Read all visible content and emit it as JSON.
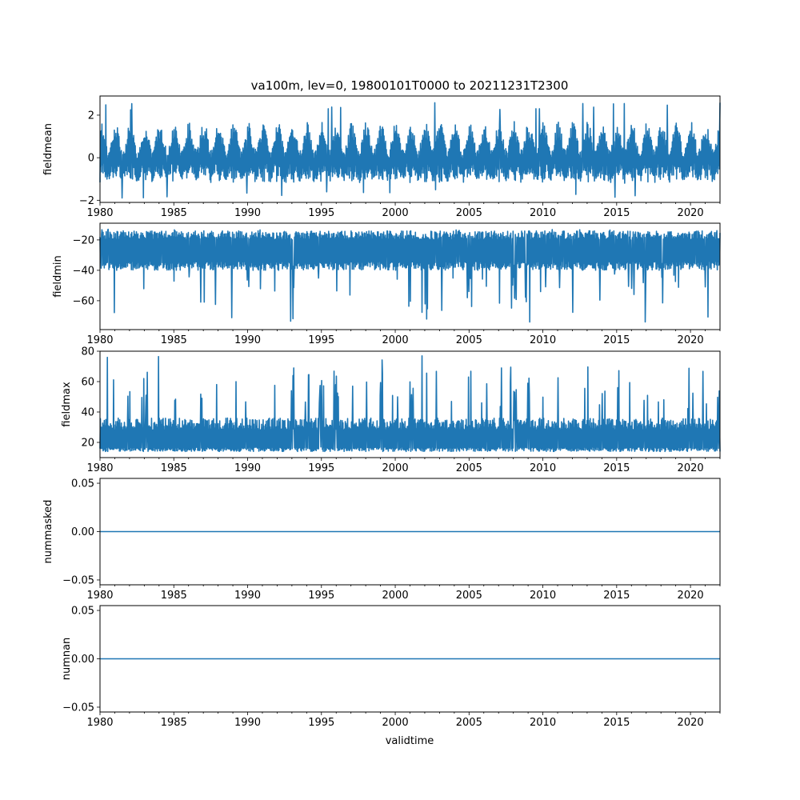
{
  "title": "va100m, lev=0, 19800101T0000 to 20211231T2300",
  "xlabel": "validtime",
  "line_color": "#1f77b4",
  "chart_data": [
    {
      "type": "line",
      "ylabel": "fieldmean",
      "xlim": [
        1980,
        2022
      ],
      "ylim": [
        -2.1,
        2.9
      ],
      "yticks": [
        -2,
        0,
        2
      ],
      "ytick_labels": [
        "−2",
        "0",
        "2"
      ],
      "xticks": [
        1980,
        1985,
        1990,
        1995,
        2000,
        2005,
        2010,
        2015,
        2020
      ],
      "xtick_labels": [
        "1980",
        "1985",
        "1990",
        "1995",
        "2000",
        "2005",
        "2010",
        "2015",
        "2020"
      ],
      "series": [
        {
          "name": "fieldmean",
          "typical_low": -1.2,
          "typical_high": 1.7,
          "extreme_low": -1.9,
          "extreme_high": 2.6,
          "annual_peaks": true
        }
      ]
    },
    {
      "type": "line",
      "ylabel": "fieldmin",
      "xlim": [
        1980,
        2022
      ],
      "ylim": [
        -79,
        -9
      ],
      "yticks": [
        -60,
        -40,
        -20
      ],
      "ytick_labels": [
        "−60",
        "−40",
        "−20"
      ],
      "xticks": [
        1980,
        1985,
        1990,
        1995,
        2000,
        2005,
        2010,
        2015,
        2020
      ],
      "xtick_labels": [
        "1980",
        "1985",
        "1990",
        "1995",
        "2000",
        "2005",
        "2010",
        "2015",
        "2020"
      ],
      "series": [
        {
          "name": "fieldmin",
          "typical_low": -38,
          "typical_high": -16,
          "extreme_low": -76,
          "extreme_high": -13,
          "downward_spikes": true
        }
      ]
    },
    {
      "type": "line",
      "ylabel": "fieldmax",
      "xlim": [
        1980,
        2022
      ],
      "ylim": [
        10,
        80
      ],
      "yticks": [
        20,
        40,
        60,
        80
      ],
      "ytick_labels": [
        "20",
        "40",
        "60",
        "80"
      ],
      "xticks": [
        1980,
        1985,
        1990,
        1995,
        2000,
        2005,
        2010,
        2015,
        2020
      ],
      "xtick_labels": [
        "1980",
        "1985",
        "1990",
        "1995",
        "2000",
        "2005",
        "2010",
        "2015",
        "2020"
      ],
      "series": [
        {
          "name": "fieldmax",
          "typical_low": 14,
          "typical_high": 36,
          "extreme_low": 12,
          "extreme_high": 77,
          "upward_spikes": true
        }
      ]
    },
    {
      "type": "line",
      "ylabel": "nummasked",
      "xlim": [
        1980,
        2022
      ],
      "ylim": [
        -0.055,
        0.055
      ],
      "yticks": [
        -0.05,
        0.0,
        0.05
      ],
      "ytick_labels": [
        "−0.05",
        "0.00",
        "0.05"
      ],
      "xticks": [
        1980,
        1985,
        1990,
        1995,
        2000,
        2005,
        2010,
        2015,
        2020
      ],
      "xtick_labels": [
        "1980",
        "1985",
        "1990",
        "1995",
        "2000",
        "2005",
        "2010",
        "2015",
        "2020"
      ],
      "series": [
        {
          "name": "nummasked",
          "constant": 0
        }
      ]
    },
    {
      "type": "line",
      "ylabel": "numnan",
      "xlim": [
        1980,
        2022
      ],
      "ylim": [
        -0.055,
        0.055
      ],
      "yticks": [
        -0.05,
        0.0,
        0.05
      ],
      "ytick_labels": [
        "−0.05",
        "0.00",
        "0.05"
      ],
      "xticks": [
        1980,
        1985,
        1990,
        1995,
        2000,
        2005,
        2010,
        2015,
        2020
      ],
      "xtick_labels": [
        "1980",
        "1985",
        "1990",
        "1995",
        "2000",
        "2005",
        "2010",
        "2015",
        "2020"
      ],
      "series": [
        {
          "name": "numnan",
          "constant": 0
        }
      ]
    }
  ]
}
